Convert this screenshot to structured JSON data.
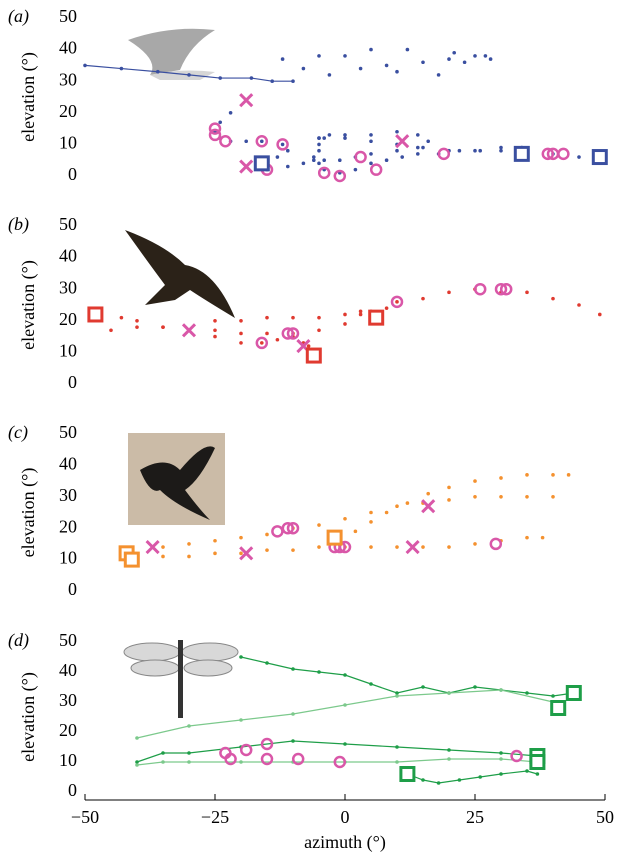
{
  "chart_data": [
    {
      "type": "scatter",
      "label": "(a)",
      "ylabel": "elevation (°)",
      "xlim": [
        -50,
        50
      ],
      "ylim": [
        0,
        50
      ],
      "yticks": [
        0,
        10,
        20,
        30,
        40,
        50
      ],
      "series": [
        {
          "marker": "line",
          "color": "#3a4fa0",
          "x": [
            -50,
            -43,
            -36,
            -30,
            -24,
            -18,
            -14,
            -10
          ],
          "values": [
            35,
            34,
            33,
            32,
            31,
            31,
            30,
            30
          ]
        },
        {
          "marker": "dot",
          "color": "#3a4fa0",
          "x": [
            -12,
            -8,
            -5,
            -3,
            0,
            3,
            5,
            8,
            10,
            12,
            15,
            18,
            20,
            21,
            23,
            25,
            27,
            28
          ],
          "values": [
            37,
            34,
            38,
            32,
            38,
            34,
            40,
            35,
            33,
            40,
            36,
            32,
            37,
            39,
            36,
            38,
            38,
            37
          ]
        },
        {
          "marker": "dot",
          "color": "#3a4fa0",
          "x": [
            -19,
            -22,
            -24,
            -25,
            -24,
            -22,
            -19,
            -16,
            -12,
            -11,
            -13,
            -16,
            -15,
            -11,
            -8,
            -6,
            -6,
            -5,
            -5,
            -4
          ],
          "values": [
            24,
            20,
            17,
            14,
            12,
            11,
            11,
            11,
            10,
            8,
            6,
            3,
            2,
            3,
            4,
            5,
            6,
            8,
            10,
            12
          ]
        },
        {
          "marker": "dot",
          "color": "#3a4fa0",
          "x": [
            -5,
            0,
            5,
            10,
            15,
            20,
            25,
            30,
            35,
            40,
            45,
            48
          ],
          "values": [
            12,
            12,
            11,
            10,
            9,
            8,
            8,
            8,
            8,
            7,
            6,
            5
          ]
        },
        {
          "marker": "dot",
          "color": "#3a4fa0",
          "x": [
            -5,
            -3,
            0,
            5,
            10,
            14,
            16,
            14,
            10,
            5,
            2,
            -1,
            -4,
            -5,
            -4,
            -1,
            2,
            5,
            8,
            11,
            14,
            18,
            22,
            26,
            30,
            34
          ],
          "values": [
            12,
            13,
            13,
            13,
            14,
            13,
            11,
            9,
            8,
            7,
            6,
            5,
            5,
            4,
            2,
            1,
            2,
            4,
            5,
            6,
            7,
            7,
            8,
            8,
            9,
            9
          ]
        },
        {
          "marker": "circle",
          "color": "#d957a8",
          "x": [
            -25,
            -25,
            -23,
            -16,
            -12,
            -15,
            -4,
            -1,
            3,
            6,
            19,
            39,
            40,
            42
          ],
          "values": [
            15,
            13,
            11,
            11,
            10,
            2,
            1,
            0,
            6,
            2,
            7,
            7,
            7,
            7
          ]
        },
        {
          "marker": "cross",
          "color": "#d957a8",
          "x": [
            -19,
            -19,
            11
          ],
          "values": [
            24,
            3,
            11
          ]
        },
        {
          "marker": "square",
          "color": "#3a4fa0",
          "x": [
            -16,
            34,
            49
          ],
          "values": [
            4,
            7,
            6
          ]
        }
      ]
    },
    {
      "type": "scatter",
      "label": "(b)",
      "ylabel": "elevation (°)",
      "xlim": [
        -50,
        50
      ],
      "ylim": [
        0,
        50
      ],
      "yticks": [
        0,
        10,
        20,
        30,
        40,
        50
      ],
      "series": [
        {
          "marker": "dot",
          "color": "#e03a30",
          "x": [
            -47,
            -43,
            -40,
            -35,
            -30,
            -25,
            -20,
            -16,
            -13,
            -10,
            -8,
            -7,
            -6
          ],
          "values": [
            22,
            21,
            20,
            18,
            17,
            15,
            13,
            13,
            14,
            15,
            13,
            12,
            9
          ]
        },
        {
          "marker": "dot",
          "color": "#e03a30",
          "x": [
            -25,
            -20,
            -15,
            -10,
            -5,
            0,
            3,
            5,
            8,
            10,
            15,
            20,
            25,
            30,
            35,
            40,
            45,
            49
          ],
          "values": [
            20,
            20,
            21,
            21,
            21,
            22,
            23,
            23,
            24,
            26,
            27,
            29,
            30,
            29,
            29,
            27,
            25,
            22
          ]
        },
        {
          "marker": "dot",
          "color": "#e03a30",
          "x": [
            -45,
            -40,
            -35,
            -30,
            -25,
            -20,
            -15,
            -10,
            -5,
            0,
            3,
            6
          ],
          "values": [
            17,
            18,
            18,
            17,
            17,
            16,
            16,
            16,
            17,
            19,
            22,
            21
          ]
        },
        {
          "marker": "circle",
          "color": "#d957a8",
          "x": [
            -16,
            -11,
            -10,
            -6,
            10,
            26,
            30,
            31
          ],
          "values": [
            13,
            16,
            16,
            9,
            26,
            30,
            30,
            30
          ]
        },
        {
          "marker": "cross",
          "color": "#d957a8",
          "x": [
            -30,
            -8
          ],
          "values": [
            17,
            12
          ]
        },
        {
          "marker": "square",
          "color": "#e03a30",
          "x": [
            -48,
            6,
            -6
          ],
          "values": [
            22,
            21,
            9
          ]
        }
      ]
    },
    {
      "type": "scatter",
      "label": "(c)",
      "ylabel": "elevation (°)",
      "xlim": [
        -50,
        50
      ],
      "ylim": [
        0,
        50
      ],
      "yticks": [
        0,
        10,
        20,
        30,
        40,
        50
      ],
      "series": [
        {
          "marker": "dot",
          "color": "#f4912f",
          "x": [
            -41,
            -35,
            -30,
            -25,
            -20,
            -15,
            -10,
            -5,
            0,
            5,
            10,
            15,
            20,
            25,
            30,
            35,
            38
          ],
          "values": [
            10,
            11,
            11,
            12,
            12,
            13,
            13,
            14,
            14,
            14,
            14,
            14,
            14,
            15,
            16,
            17,
            17
          ]
        },
        {
          "marker": "dot",
          "color": "#f4912f",
          "x": [
            -41,
            -35,
            -30,
            -25,
            -20,
            -15,
            -10,
            -5,
            0,
            5,
            10,
            15,
            20,
            25,
            30,
            35,
            40
          ],
          "values": [
            13,
            14,
            15,
            16,
            17,
            18,
            20,
            21,
            23,
            25,
            27,
            28,
            29,
            30,
            30,
            30,
            30
          ]
        },
        {
          "marker": "dot",
          "color": "#f4912f",
          "x": [
            -1,
            2,
            5,
            8,
            12,
            16,
            20,
            25,
            30,
            35,
            40,
            43
          ],
          "values": [
            16,
            19,
            22,
            25,
            28,
            31,
            33,
            35,
            36,
            37,
            37,
            37
          ]
        },
        {
          "marker": "circle",
          "color": "#d957a8",
          "x": [
            -13,
            -11,
            -10,
            -2,
            -1,
            0,
            29
          ],
          "values": [
            19,
            20,
            20,
            14,
            14,
            14,
            15
          ]
        },
        {
          "marker": "cross",
          "color": "#d957a8",
          "x": [
            -37,
            -19,
            13,
            16
          ],
          "values": [
            14,
            12,
            14,
            27
          ]
        },
        {
          "marker": "square",
          "color": "#f4912f",
          "x": [
            -42,
            -41,
            -2
          ],
          "values": [
            12,
            10,
            17
          ]
        }
      ]
    },
    {
      "type": "scatter",
      "label": "(d)",
      "ylabel": "elevation (°)",
      "xlabel": "azimuth (°)",
      "xlim": [
        -50,
        50
      ],
      "ylim": [
        0,
        50
      ],
      "yticks": [
        0,
        10,
        20,
        30,
        40,
        50
      ],
      "xticks": [
        {
          "value": -50,
          "label": "−50"
        },
        {
          "value": -25,
          "label": "−25"
        },
        0,
        25,
        50
      ],
      "series": [
        {
          "marker": "line",
          "color": "#1e9e48",
          "x": [
            -20,
            -15,
            -10,
            -5,
            0,
            5,
            10,
            15,
            20,
            25,
            30,
            35,
            40,
            44
          ],
          "values": [
            45,
            43,
            41,
            40,
            39,
            36,
            33,
            35,
            33,
            35,
            34,
            33,
            32,
            33
          ]
        },
        {
          "marker": "line",
          "color": "#7cc98c",
          "x": [
            -40,
            -30,
            -20,
            -10,
            0,
            10,
            20,
            30,
            40,
            42
          ],
          "values": [
            18,
            22,
            24,
            26,
            29,
            32,
            33,
            34,
            30,
            28
          ]
        },
        {
          "marker": "line",
          "color": "#1e9e48",
          "x": [
            -40,
            -35,
            -30,
            -20,
            -10,
            0,
            10,
            20,
            30,
            37
          ],
          "values": [
            10,
            13,
            13,
            15,
            17,
            16,
            15,
            14,
            13,
            12
          ]
        },
        {
          "marker": "line",
          "color": "#7cc98c",
          "x": [
            -40,
            -35,
            -30,
            -20,
            -10,
            0,
            10,
            20,
            30,
            37
          ],
          "values": [
            9,
            10,
            10,
            10,
            10,
            10,
            10,
            11,
            11,
            10
          ]
        },
        {
          "marker": "line",
          "color": "#1e9e48",
          "x": [
            12,
            15,
            18,
            22,
            26,
            30,
            35,
            37
          ],
          "values": [
            6,
            4,
            3,
            4,
            5,
            6,
            7,
            6
          ]
        },
        {
          "marker": "circle",
          "color": "#d957a8",
          "x": [
            -23,
            -19,
            -15,
            -22,
            -15,
            -9,
            -1,
            33
          ],
          "values": [
            13,
            14,
            16,
            11,
            11,
            11,
            10,
            12
          ]
        },
        {
          "marker": "square",
          "color": "#1e9e48",
          "x": [
            44,
            41,
            37,
            37,
            12
          ],
          "values": [
            33,
            28,
            12,
            10,
            6
          ]
        }
      ]
    }
  ]
}
